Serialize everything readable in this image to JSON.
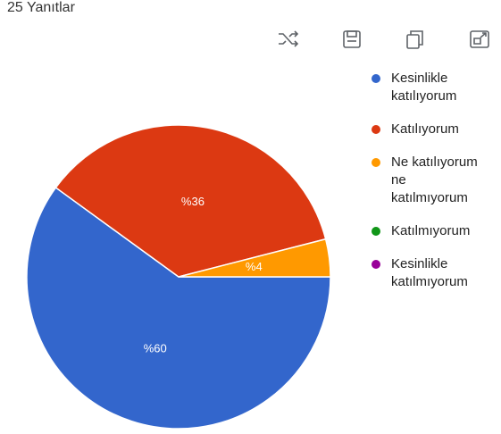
{
  "chart_data": {
    "type": "pie",
    "subtitle": "25 Yanıtlar",
    "categories": [
      "Kesinlikle katılıyorum",
      "Katılıyorum",
      "Ne katılıyorum ne katılmıyorum",
      "Katılmıyorum",
      "Kesinlikle katılmıyorum"
    ],
    "values": [
      60,
      36,
      4,
      0,
      0
    ],
    "value_labels": [
      "%60",
      "%36",
      "%4",
      null,
      null
    ],
    "colors": [
      "#3366cc",
      "#dc3912",
      "#ff9900",
      "#109618",
      "#990099"
    ],
    "legend": "right"
  }
}
